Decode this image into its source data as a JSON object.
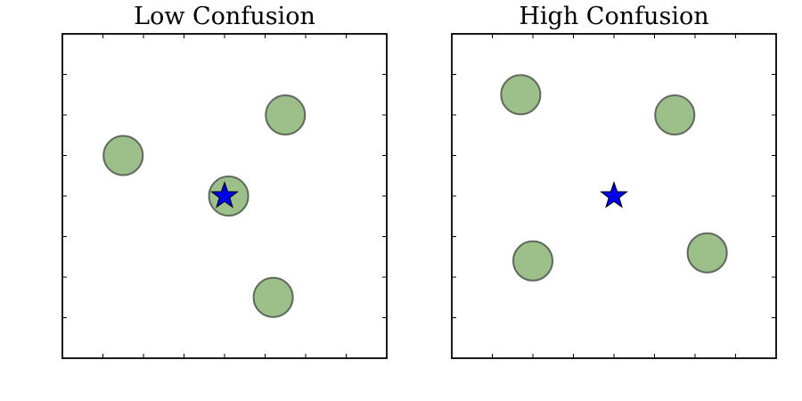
{
  "chart_data": [
    {
      "type": "scatter",
      "title": "Low Confusion",
      "xlim": [
        0,
        8
      ],
      "ylim": [
        0,
        8
      ],
      "grid": false,
      "x_ticks": [
        1,
        2,
        3,
        4,
        5,
        6,
        7
      ],
      "y_ticks": [
        1,
        2,
        3,
        4,
        5,
        6,
        7
      ],
      "tick_labels_shown": false,
      "series": [
        {
          "marker": "circle",
          "color": "#9dbf8a",
          "edge_color": "#5f6b5c",
          "x": [
            1.5,
            5.5,
            4.1,
            5.2
          ],
          "y": [
            5.0,
            6.0,
            4.0,
            1.5
          ]
        },
        {
          "marker": "star",
          "color": "#0000ee",
          "edge_color": "#000033",
          "x": [
            4.0
          ],
          "y": [
            4.0
          ]
        }
      ]
    },
    {
      "type": "scatter",
      "title": "High Confusion",
      "xlim": [
        0,
        8
      ],
      "ylim": [
        0,
        8
      ],
      "grid": false,
      "x_ticks": [
        1,
        2,
        3,
        4,
        5,
        6,
        7
      ],
      "y_ticks": [
        1,
        2,
        3,
        4,
        5,
        6,
        7
      ],
      "tick_labels_shown": false,
      "series": [
        {
          "marker": "circle",
          "color": "#9dbf8a",
          "edge_color": "#5f6b5c",
          "x": [
            1.7,
            5.5,
            2.0,
            6.3
          ],
          "y": [
            6.5,
            6.0,
            2.4,
            2.6
          ]
        },
        {
          "marker": "star",
          "color": "#0000ee",
          "edge_color": "#000033",
          "x": [
            4.0
          ],
          "y": [
            4.0
          ]
        }
      ]
    }
  ]
}
